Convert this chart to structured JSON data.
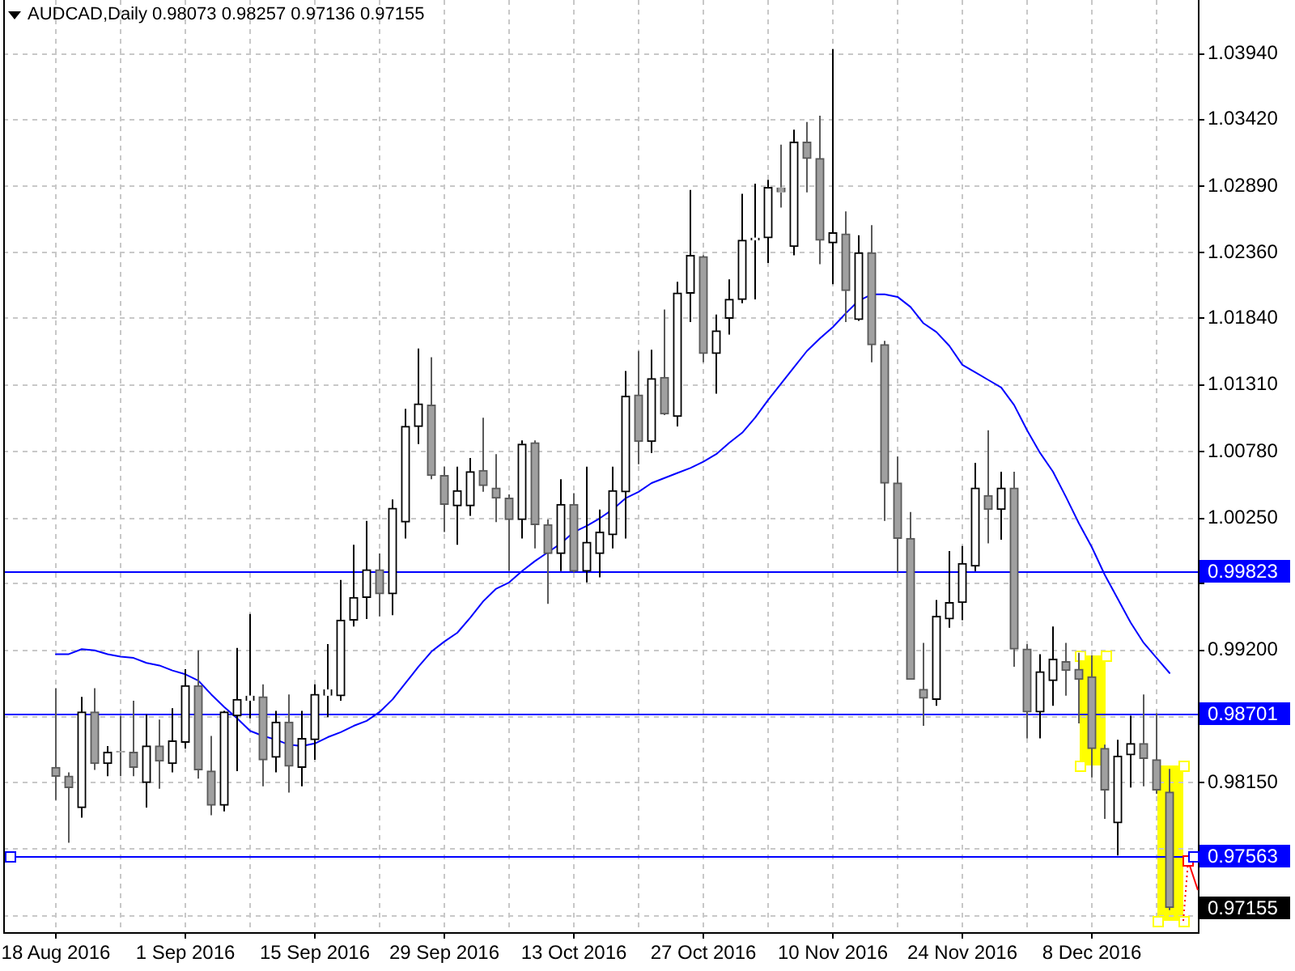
{
  "chart_data": {
    "type": "candlestick",
    "title": "AUDCAD,Daily 0.98073 0.98257 0.97136 0.97155",
    "categories": [
      "18 Aug 2016",
      null,
      null,
      null,
      null,
      null,
      null,
      null,
      null,
      null,
      "1 Sep 2016",
      null,
      null,
      null,
      null,
      null,
      null,
      null,
      null,
      null,
      "15 Sep 2016",
      null,
      null,
      null,
      null,
      null,
      null,
      null,
      null,
      null,
      "29 Sep 2016",
      null,
      null,
      null,
      null,
      null,
      null,
      null,
      null,
      null,
      "13 Oct 2016",
      null,
      null,
      null,
      null,
      null,
      null,
      null,
      null,
      null,
      "27 Oct 2016",
      null,
      null,
      null,
      null,
      null,
      null,
      null,
      null,
      null,
      "10 Nov 2016",
      null,
      null,
      null,
      null,
      null,
      null,
      null,
      null,
      null,
      "24 Nov 2016",
      null,
      null,
      null,
      null,
      null,
      null,
      null,
      null,
      null,
      "8 Dec 2016",
      null,
      null,
      null,
      null,
      null,
      null
    ],
    "ohlc": [
      [
        0.9827,
        0.989,
        0.9801,
        0.982
      ],
      [
        0.982,
        0.9823,
        0.9767,
        0.9811
      ],
      [
        0.9795,
        0.9883,
        0.9787,
        0.9871
      ],
      [
        0.9871,
        0.989,
        0.9825,
        0.983
      ],
      [
        0.983,
        0.9844,
        0.982,
        0.9839
      ],
      [
        0.984,
        0.9868,
        0.982,
        0.9839
      ],
      [
        0.9839,
        0.988,
        0.982,
        0.9827
      ],
      [
        0.9815,
        0.9869,
        0.9795,
        0.9844
      ],
      [
        0.9844,
        0.9865,
        0.981,
        0.9832
      ],
      [
        0.983,
        0.9874,
        0.9823,
        0.9848
      ],
      [
        0.9847,
        0.9905,
        0.9842,
        0.9892
      ],
      [
        0.9892,
        0.992,
        0.9818,
        0.9825
      ],
      [
        0.9824,
        0.9852,
        0.9789,
        0.9797
      ],
      [
        0.9797,
        0.9872,
        0.9792,
        0.9871
      ],
      [
        0.9868,
        0.9922,
        0.9824,
        0.9881
      ],
      [
        0.988,
        0.9949,
        0.9866,
        0.9884
      ],
      [
        0.9883,
        0.9893,
        0.9812,
        0.9833
      ],
      [
        0.9835,
        0.9872,
        0.9823,
        0.9863
      ],
      [
        0.9863,
        0.9885,
        0.9807,
        0.9828
      ],
      [
        0.9827,
        0.9872,
        0.9812,
        0.985
      ],
      [
        0.9849,
        0.9893,
        0.9833,
        0.9885
      ],
      [
        0.9884,
        0.9925,
        0.9867,
        0.9889
      ],
      [
        0.9884,
        0.9976,
        0.988,
        0.9944
      ],
      [
        0.9944,
        1.0004,
        0.9939,
        0.9962
      ],
      [
        0.9962,
        1.0023,
        0.9945,
        0.9984
      ],
      [
        0.9984,
        0.9997,
        0.9947,
        0.9965
      ],
      [
        0.9965,
        1.004,
        0.9948,
        1.0033
      ],
      [
        1.0022,
        1.0112,
        1.0009,
        1.0098
      ],
      [
        1.0098,
        1.016,
        1.0084,
        1.0116
      ],
      [
        1.0115,
        1.0153,
        1.0056,
        1.0059
      ],
      [
        1.0059,
        1.0066,
        1.0014,
        1.0036
      ],
      [
        1.0035,
        1.0066,
        1.0004,
        1.0047
      ],
      [
        1.0035,
        1.0073,
        1.0027,
        1.0062
      ],
      [
        1.0063,
        1.0105,
        1.0046,
        1.0051
      ],
      [
        1.0049,
        1.0076,
        1.0022,
        1.0041
      ],
      [
        1.0041,
        1.0044,
        0.9983,
        1.0024
      ],
      [
        1.0024,
        1.0087,
        1.0009,
        1.0084
      ],
      [
        1.0085,
        1.0087,
        1.0001,
        1.002
      ],
      [
        1.002,
        1.0024,
        0.9957,
        0.9997
      ],
      [
        0.9997,
        1.0056,
        0.9983,
        1.0036
      ],
      [
        1.0036,
        1.0045,
        0.9982,
        0.9983
      ],
      [
        0.9983,
        1.0066,
        0.9974,
        1.0006
      ],
      [
        0.9997,
        1.0032,
        0.9978,
        1.0014
      ],
      [
        1.0012,
        1.0066,
        1.0001,
        1.0047
      ],
      [
        1.0046,
        1.0142,
        1.0009,
        1.0122
      ],
      [
        1.0123,
        1.0158,
        1.0068,
        1.0086
      ],
      [
        1.0086,
        1.0159,
        1.0077,
        1.0136
      ],
      [
        1.0137,
        1.0191,
        1.0107,
        1.0108
      ],
      [
        1.0106,
        1.0213,
        1.0098,
        1.0204
      ],
      [
        1.0204,
        1.0286,
        1.0181,
        1.0234
      ],
      [
        1.0233,
        1.0234,
        1.0149,
        1.0156
      ],
      [
        1.0156,
        1.0187,
        1.0124,
        1.0174
      ],
      [
        1.0184,
        1.0215,
        1.0171,
        1.0199
      ],
      [
        1.0199,
        1.0283,
        1.0196,
        1.0246
      ],
      [
        1.0246,
        1.0291,
        1.0199,
        1.0248
      ],
      [
        1.0248,
        1.0294,
        1.0228,
        1.0288
      ],
      [
        1.0288,
        1.0322,
        1.0272,
        1.0284
      ],
      [
        1.0241,
        1.0334,
        1.0234,
        1.0324
      ],
      [
        1.0324,
        1.034,
        1.0284,
        1.0311
      ],
      [
        1.0311,
        1.0345,
        1.0227,
        1.0246
      ],
      [
        1.0244,
        1.0398,
        1.0211,
        1.0252
      ],
      [
        1.0251,
        1.0269,
        1.0181,
        1.0206
      ],
      [
        1.0183,
        1.025,
        1.0182,
        1.0236
      ],
      [
        1.0236,
        1.0258,
        1.0149,
        1.0163
      ],
      [
        1.0163,
        1.0166,
        1.0023,
        1.0053
      ],
      [
        1.0053,
        1.0074,
        0.9982,
        1.0009
      ],
      [
        1.0009,
        1.003,
        0.9897,
        0.9897
      ],
      [
        0.9889,
        0.9926,
        0.986,
        0.9882
      ],
      [
        0.9881,
        0.996,
        0.9876,
        0.9947
      ],
      [
        0.9945,
        0.9999,
        0.9938,
        0.9958
      ],
      [
        0.9958,
        1.0003,
        0.9944,
        0.9989
      ],
      [
        0.9987,
        1.0069,
        0.9983,
        1.0049
      ],
      [
        1.0043,
        1.0095,
        1.0005,
        1.0032
      ],
      [
        1.0032,
        1.0062,
        1.0008,
        1.0049
      ],
      [
        1.0049,
        1.0062,
        0.9907,
        0.9921
      ],
      [
        0.9921,
        0.9925,
        0.985,
        0.9871
      ],
      [
        0.9871,
        0.9917,
        0.985,
        0.9903
      ],
      [
        0.9896,
        0.9939,
        0.9876,
        0.9913
      ],
      [
        0.9911,
        0.9926,
        0.9884,
        0.9904
      ],
      [
        0.9905,
        0.9918,
        0.9862,
        0.9897
      ],
      [
        0.9899,
        0.9916,
        0.9819,
        0.9842
      ],
      [
        0.9842,
        0.9845,
        0.9786,
        0.9809
      ],
      [
        0.9783,
        0.9849,
        0.9757,
        0.9836
      ],
      [
        0.9837,
        0.9868,
        0.9811,
        0.9846
      ],
      [
        0.9846,
        0.9885,
        0.9812,
        0.9834
      ],
      [
        0.9833,
        0.987,
        0.9806,
        0.9809
      ],
      [
        0.98073,
        0.98257,
        0.97136,
        0.97155
      ]
    ],
    "series": [
      {
        "type": "line",
        "color": "#0000ff",
        "values": [
          0.9917,
          0.9917,
          0.9921,
          0.992,
          0.9917,
          0.9915,
          0.9914,
          0.991,
          0.9908,
          0.9904,
          0.9901,
          0.9896,
          0.9885,
          0.9875,
          0.9866,
          0.9856,
          0.9852,
          0.9849,
          0.9845,
          0.9844,
          0.9846,
          0.9851,
          0.9855,
          0.986,
          0.9864,
          0.9871,
          0.9881,
          0.9894,
          0.9907,
          0.9919,
          0.9927,
          0.9934,
          0.9946,
          0.9959,
          0.9969,
          0.9974,
          0.9983,
          0.9991,
          0.9998,
          1.0005,
          1.0014,
          1.0019,
          1.0025,
          1.0032,
          1.0041,
          1.0046,
          1.0053,
          1.0057,
          1.0061,
          1.0065,
          1.007,
          1.0076,
          1.0085,
          1.0093,
          1.0105,
          1.0119,
          1.0132,
          1.0145,
          1.0158,
          1.0168,
          1.0177,
          1.0188,
          1.0198,
          1.0203,
          1.0203,
          1.0201,
          1.0193,
          1.018,
          1.0173,
          1.0162,
          1.0147,
          1.0141,
          1.0135,
          1.0129,
          1.0115,
          1.0095,
          1.0077,
          1.0062,
          1.0042,
          1.0021,
          1.0002,
          0.998,
          0.9961,
          0.9942,
          0.9926,
          0.9914,
          0.9902
        ]
      }
    ],
    "ylim": [
      0.9696,
      1.0437
    ],
    "yticks": [
      {
        "value": 1.0394,
        "label": "1.03940"
      },
      {
        "value": 1.0342,
        "label": "1.03420"
      },
      {
        "value": 1.0289,
        "label": "1.02890"
      },
      {
        "value": 1.0236,
        "label": "1.02360"
      },
      {
        "value": 1.0184,
        "label": "1.01840"
      },
      {
        "value": 1.0131,
        "label": "1.01310"
      },
      {
        "value": 1.0078,
        "label": "1.00780"
      },
      {
        "value": 1.0025,
        "label": "1.00250"
      },
      {
        "value": 0.9973,
        "label": null
      },
      {
        "value": 0.992,
        "label": "0.99200"
      },
      {
        "value": 0.9867,
        "label": null
      },
      {
        "value": 0.9815,
        "label": "0.98150"
      },
      {
        "value": 0.9762,
        "label": null
      },
      {
        "value": 0.9709,
        "label": null
      }
    ],
    "grid": true,
    "ref_lines": [
      {
        "axis": "y",
        "value": 0.99823,
        "label": "0.99823",
        "color": "#0000ff"
      },
      {
        "axis": "y",
        "value": 0.98701,
        "label": "0.98701",
        "color": "#0000ff"
      },
      {
        "axis": "y",
        "value": 0.97563,
        "label": "0.97563",
        "color": "#0000ff"
      }
    ],
    "annotations": [
      "0.97155"
    ]
  }
}
